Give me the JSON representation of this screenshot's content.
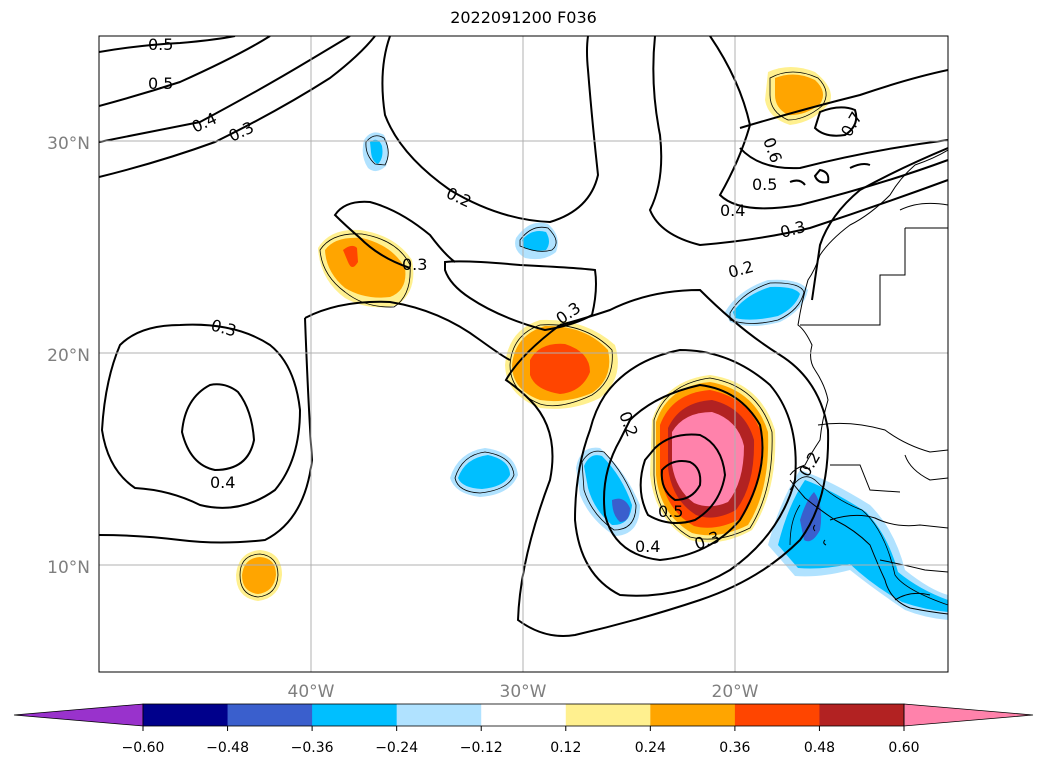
{
  "title": "2022091200 F036",
  "lat_labels": [
    "30°N",
    "20°N",
    "10°N"
  ],
  "lon_labels": [
    "40°W",
    "30°W",
    "20°W"
  ],
  "contour_labels": [
    "0.5",
    "0.5",
    "0.4",
    "0.3",
    "0.2",
    "0.3",
    "0.3",
    "0.3",
    "0.4",
    "0.2",
    "0.3",
    "0.4",
    "0.5",
    "0.6",
    "0.7",
    "0.2",
    "0.5",
    "0.4",
    "0.3",
    "0.2"
  ],
  "colorbar": {
    "colors": [
      "#9932cc",
      "#00008b",
      "#3a5fcd",
      "#00bfff",
      "#b0e2ff",
      "#ffffff",
      "#fff08f",
      "#ffa500",
      "#ff4500",
      "#b22222",
      "#ff82ab"
    ],
    "tick_labels": [
      "−0.60",
      "−0.48",
      "−0.36",
      "−0.24",
      "−0.12",
      "0.12",
      "0.24",
      "0.36",
      "0.48",
      "0.60"
    ]
  },
  "grid_color": "#b0b0b0",
  "tick_label_color": "#7f7f7f"
}
